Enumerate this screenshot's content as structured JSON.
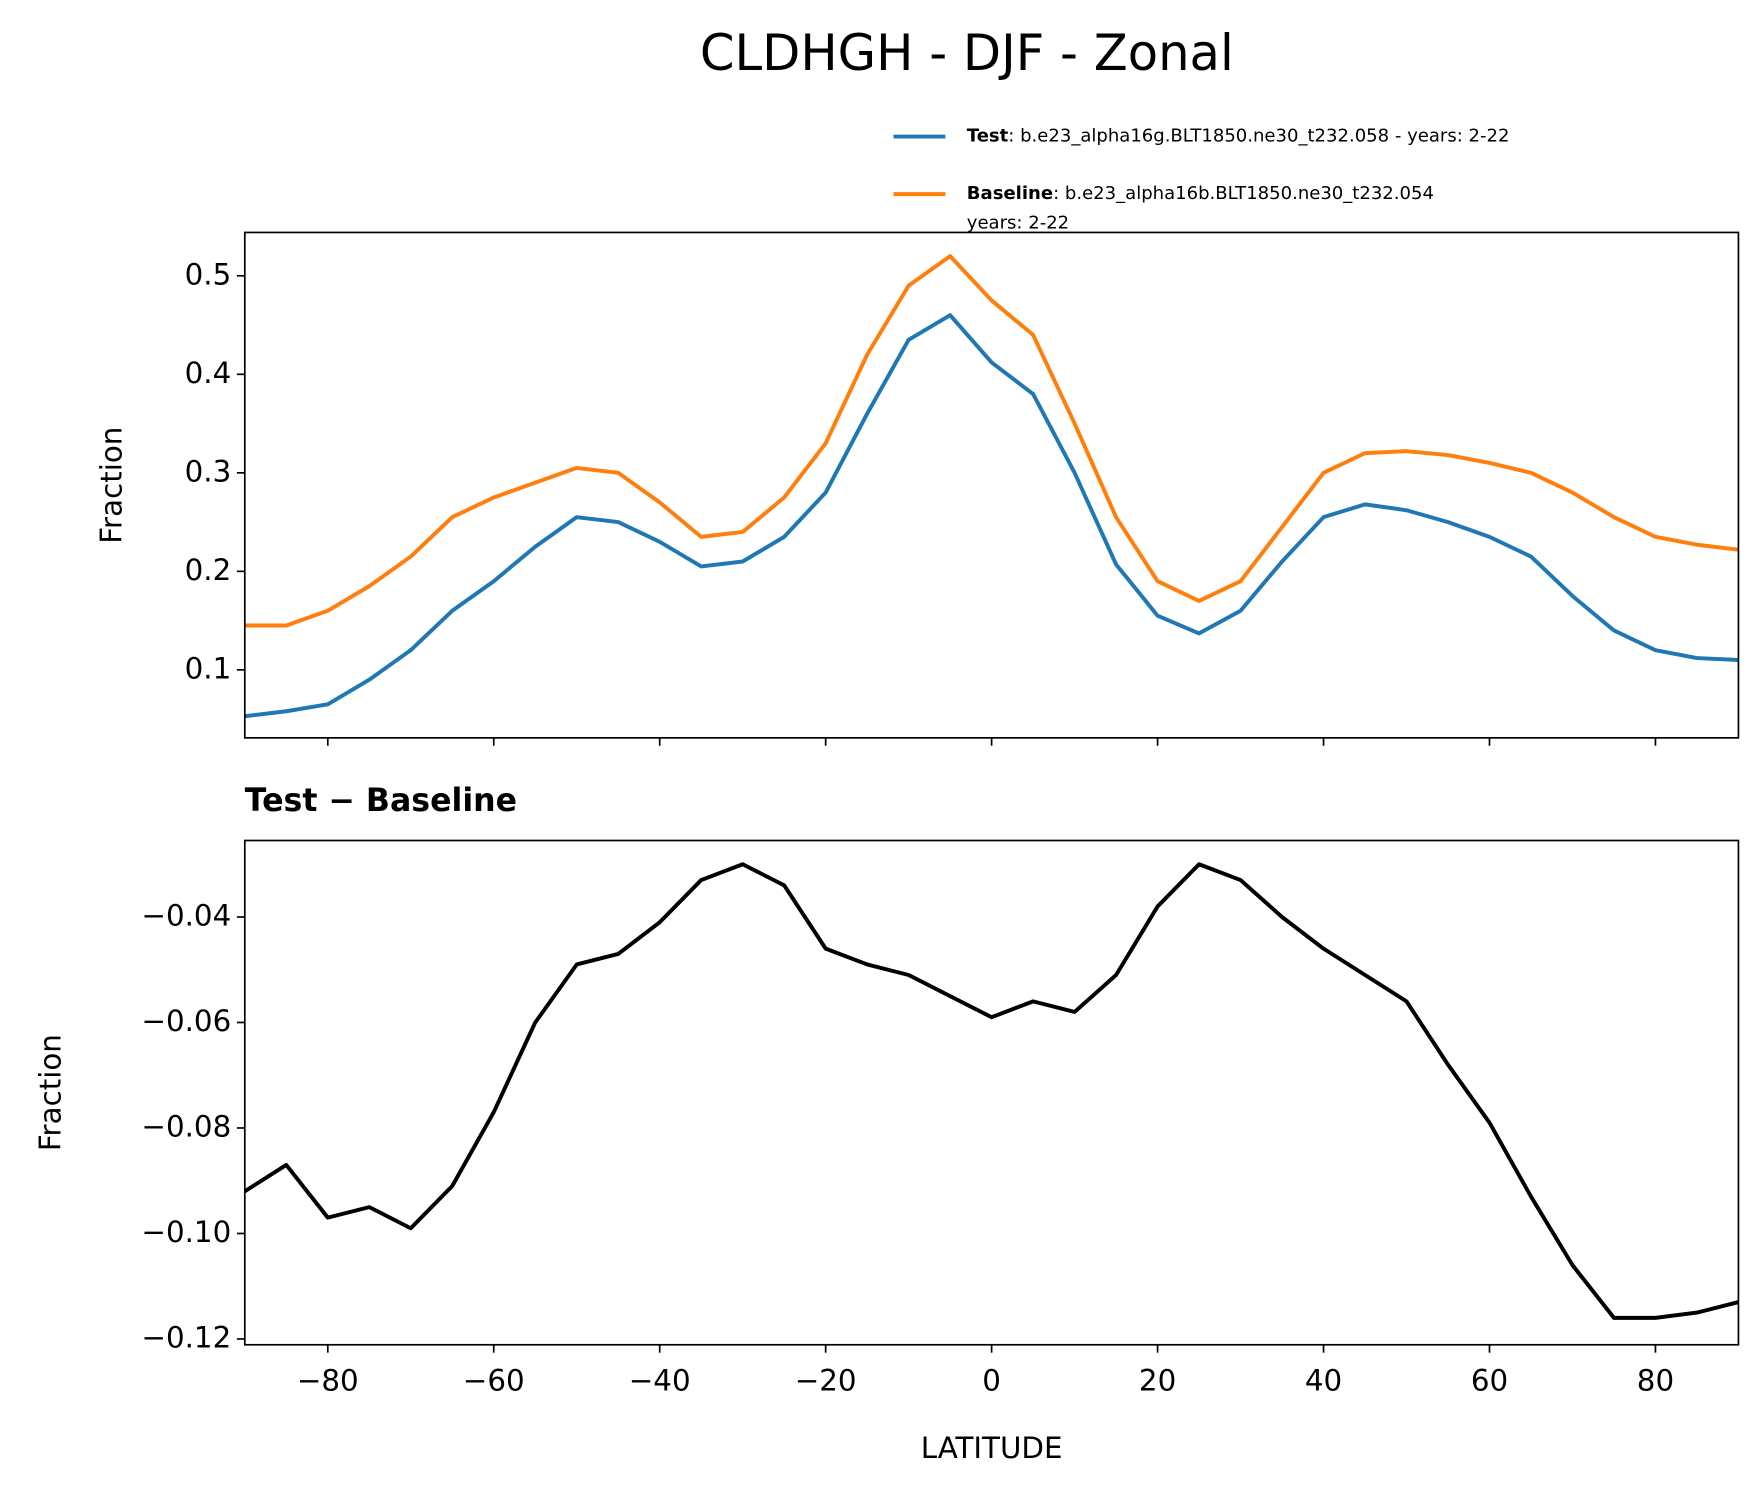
{
  "title": "CLDHGH - DJF - Zonal",
  "chart_data": [
    {
      "type": "line",
      "ylabel": "Fraction",
      "x": [
        -90,
        -85,
        -80,
        -75,
        -70,
        -65,
        -60,
        -55,
        -50,
        -45,
        -40,
        -35,
        -30,
        -25,
        -20,
        -15,
        -10,
        -5,
        0,
        5,
        10,
        15,
        20,
        25,
        30,
        35,
        40,
        45,
        50,
        55,
        60,
        65,
        70,
        75,
        80,
        85,
        90
      ],
      "series": [
        {
          "name": "Test",
          "description": [
            ": b.e23_alpha16g.BLT1850.ne30_t232.058 - years: 2-22"
          ],
          "color": "#1f77b4",
          "values": [
            0.053,
            0.058,
            0.065,
            0.09,
            0.12,
            0.16,
            0.19,
            0.225,
            0.255,
            0.25,
            0.23,
            0.205,
            0.21,
            0.235,
            0.28,
            0.36,
            0.435,
            0.46,
            0.412,
            0.38,
            0.3,
            0.207,
            0.155,
            0.137,
            0.16,
            0.21,
            0.255,
            0.268,
            0.262,
            0.25,
            0.235,
            0.215,
            0.175,
            0.14,
            0.12,
            0.112,
            0.11
          ]
        },
        {
          "name": "Baseline",
          "description": [
            ": b.e23_alpha16b.BLT1850.ne30_t232.054",
            "years: 2-22"
          ],
          "color": "#ff7f0e",
          "values": [
            0.145,
            0.145,
            0.16,
            0.185,
            0.215,
            0.255,
            0.275,
            0.29,
            0.305,
            0.3,
            0.27,
            0.235,
            0.24,
            0.275,
            0.33,
            0.42,
            0.49,
            0.52,
            0.475,
            0.44,
            0.35,
            0.255,
            0.19,
            0.17,
            0.19,
            0.245,
            0.3,
            0.32,
            0.322,
            0.318,
            0.31,
            0.3,
            0.28,
            0.255,
            0.235,
            0.227,
            0.222
          ]
        }
      ],
      "xlim": [
        -90,
        90
      ],
      "ylim": [
        0.031,
        0.544
      ],
      "yticks": [
        0.1,
        0.2,
        0.3,
        0.4,
        0.5
      ]
    },
    {
      "type": "line",
      "title": "Test − Baseline",
      "xlabel": "LATITUDE",
      "ylabel": "Fraction",
      "color": "#000000",
      "x": [
        -90,
        -85,
        -80,
        -75,
        -70,
        -65,
        -60,
        -55,
        -50,
        -45,
        -40,
        -35,
        -30,
        -25,
        -20,
        -15,
        -10,
        -5,
        0,
        5,
        10,
        15,
        20,
        25,
        30,
        35,
        40,
        45,
        50,
        55,
        60,
        65,
        70,
        75,
        80,
        85,
        90
      ],
      "values": [
        -0.092,
        -0.087,
        -0.097,
        -0.095,
        -0.099,
        -0.091,
        -0.077,
        -0.06,
        -0.049,
        -0.047,
        -0.041,
        -0.033,
        -0.03,
        -0.034,
        -0.046,
        -0.049,
        -0.051,
        -0.055,
        -0.059,
        -0.056,
        -0.058,
        -0.051,
        -0.038,
        -0.03,
        -0.033,
        -0.04,
        -0.046,
        -0.051,
        -0.056,
        -0.068,
        -0.079,
        -0.093,
        -0.106,
        -0.116,
        -0.116,
        -0.115,
        -0.113
      ],
      "xlim": [
        -90,
        90
      ],
      "ylim": [
        -0.1211,
        -0.0255
      ],
      "xticks": [
        {
          "value": -80,
          "label": "−80"
        },
        {
          "value": -60,
          "label": "−60"
        },
        {
          "value": -40,
          "label": "−40"
        },
        {
          "value": -20,
          "label": "−20"
        },
        0,
        20,
        40,
        60,
        80
      ],
      "yticks": [
        {
          "value": -0.04,
          "label": "−0.04"
        },
        {
          "value": -0.06,
          "label": "−0.06"
        },
        {
          "value": -0.08,
          "label": "−0.08"
        },
        {
          "value": -0.1,
          "label": "−0.10"
        },
        {
          "value": -0.12,
          "label": "−0.12"
        }
      ]
    }
  ]
}
